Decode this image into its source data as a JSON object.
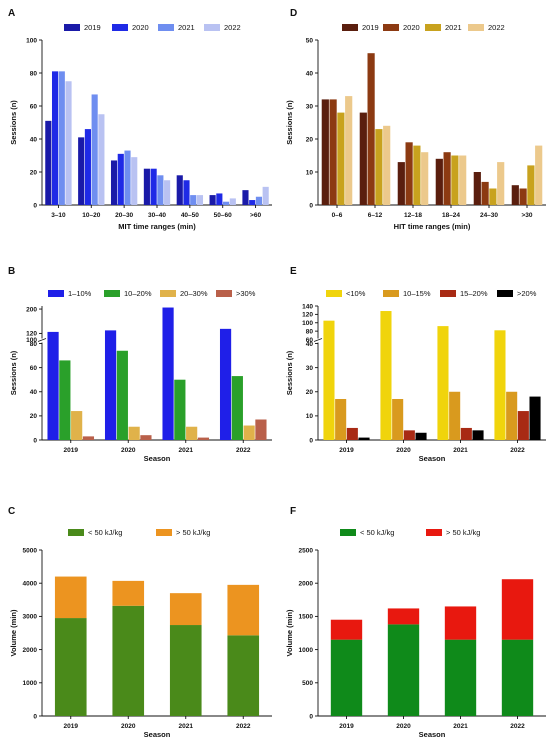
{
  "chart_data": [
    {
      "panel": "A",
      "type": "bar",
      "categories": [
        "3–10",
        "10–20",
        "20–30",
        "30–40",
        "40–50",
        "50–60",
        ">60"
      ],
      "series": [
        {
          "name": "2019",
          "color": "#1a1aa8",
          "values": [
            51,
            41,
            27,
            22,
            18,
            6,
            9
          ]
        },
        {
          "name": "2020",
          "color": "#1f2ae6",
          "values": [
            81,
            46,
            31,
            22,
            15,
            7,
            3
          ]
        },
        {
          "name": "2021",
          "color": "#6f8ef0",
          "values": [
            81,
            67,
            33,
            18,
            6,
            2,
            5
          ]
        },
        {
          "name": "2022",
          "color": "#b9c2f2",
          "values": [
            75,
            55,
            29,
            15,
            6,
            4,
            11
          ]
        }
      ],
      "xlabel": "MIT time ranges (min)",
      "ylabel": "Sessions (n)",
      "ylim": [
        0,
        100
      ],
      "yticks": [
        0,
        20,
        40,
        60,
        80,
        100
      ],
      "legend": "top"
    },
    {
      "panel": "D",
      "type": "bar",
      "categories": [
        "0–6",
        "6–12",
        "12–18",
        "18–24",
        "24–30",
        ">30"
      ],
      "series": [
        {
          "name": "2019",
          "color": "#5a1e0e",
          "values": [
            32,
            28,
            13,
            14,
            10,
            6
          ]
        },
        {
          "name": "2020",
          "color": "#8c3a12",
          "values": [
            32,
            46,
            19,
            16,
            7,
            5
          ]
        },
        {
          "name": "2021",
          "color": "#c8a21e",
          "values": [
            28,
            23,
            18,
            15,
            5,
            12
          ]
        },
        {
          "name": "2022",
          "color": "#ecc98c",
          "values": [
            33,
            24,
            16,
            15,
            13,
            18
          ]
        }
      ],
      "xlabel": "HIT time ranges (min)",
      "ylabel": "Sessions (n)",
      "ylim": [
        0,
        50
      ],
      "yticks": [
        0,
        10,
        20,
        30,
        40,
        50
      ],
      "legend": "top"
    },
    {
      "panel": "B",
      "type": "bar",
      "categories": [
        "2019",
        "2020",
        "2021",
        "2022"
      ],
      "series": [
        {
          "name": "1–10%",
          "color": "#1f1fe8",
          "values": [
            125,
            130,
            205,
            135
          ]
        },
        {
          "name": "10–20%",
          "color": "#2aa02a",
          "values": [
            66,
            74,
            50,
            53
          ]
        },
        {
          "name": "20–30%",
          "color": "#e0b24a",
          "values": [
            24,
            11,
            11,
            12
          ]
        },
        {
          "name": ">30%",
          "color": "#b9604a",
          "values": [
            3,
            4,
            2,
            17
          ]
        }
      ],
      "xlabel": "Season",
      "ylabel": "Sessions (n)",
      "axis_break": [
        80,
        100
      ],
      "yticks": [
        0,
        20,
        40,
        60,
        80,
        100,
        120,
        200
      ],
      "legend": "top"
    },
    {
      "panel": "E",
      "type": "bar",
      "categories": [
        "2019",
        "2020",
        "2021",
        "2022"
      ],
      "series": [
        {
          "name": "<10%",
          "color": "#f0d40c",
          "values": [
            105,
            128,
            92,
            82
          ]
        },
        {
          "name": "10–15%",
          "color": "#d99a1e",
          "values": [
            17,
            17,
            20,
            20
          ]
        },
        {
          "name": "15–20%",
          "color": "#a82a14",
          "values": [
            5,
            4,
            5,
            12
          ]
        },
        {
          "name": ">20%",
          "color": "#000000",
          "values": [
            1,
            3,
            4,
            18
          ]
        }
      ],
      "xlabel": "Season",
      "ylabel": "Sessions (n)",
      "axis_break": [
        40,
        60
      ],
      "yticks": [
        0,
        10,
        20,
        30,
        40,
        60,
        80,
        100,
        120,
        140
      ],
      "legend": "top"
    },
    {
      "panel": "C",
      "type": "bar",
      "stacked": true,
      "categories": [
        "2019",
        "2020",
        "2021",
        "2022"
      ],
      "series": [
        {
          "name": "< 50 kJ/kg",
          "color": "#4a8a1a",
          "values": [
            2950,
            3320,
            2740,
            2430
          ]
        },
        {
          "name": "> 50 kJ/kg",
          "color": "#ec9420",
          "values": [
            1250,
            750,
            960,
            1520
          ]
        }
      ],
      "xlabel": "Season",
      "ylabel": "Volume (min)",
      "ylim": [
        0,
        5000
      ],
      "yticks": [
        0,
        1000,
        2000,
        3000,
        4000,
        5000
      ],
      "legend": "top"
    },
    {
      "panel": "F",
      "type": "bar",
      "stacked": true,
      "categories": [
        "2019",
        "2020",
        "2021",
        "2022"
      ],
      "series": [
        {
          "name": "< 50 kJ/kg",
          "color": "#0f8a1a",
          "values": [
            1150,
            1380,
            1150,
            1150
          ]
        },
        {
          "name": "> 50 kJ/kg",
          "color": "#e8180f",
          "values": [
            300,
            240,
            500,
            910
          ]
        }
      ],
      "xlabel": "Season",
      "ylabel": "Volume (min)",
      "ylim": [
        0,
        2500
      ],
      "yticks": [
        0,
        500,
        1000,
        1500,
        2000,
        2500
      ],
      "legend": "top"
    }
  ]
}
